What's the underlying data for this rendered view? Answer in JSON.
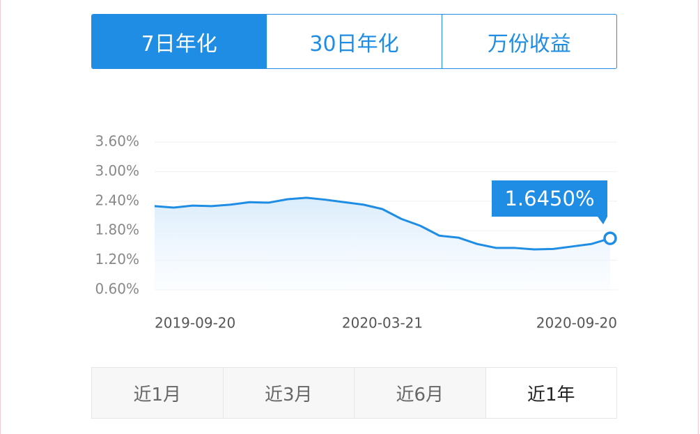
{
  "tabs": {
    "items": [
      "7日年化",
      "30日年化",
      "万份收益"
    ],
    "active": 0
  },
  "chart_data": {
    "type": "line",
    "categories": [
      "2019-09-20",
      null,
      null,
      null,
      null,
      null,
      null,
      null,
      null,
      null,
      null,
      null,
      "2020-03-21",
      null,
      null,
      null,
      null,
      null,
      null,
      null,
      null,
      null,
      null,
      null,
      "2020-09-20"
    ],
    "values": [
      2.3,
      2.27,
      2.31,
      2.3,
      2.33,
      2.38,
      2.37,
      2.44,
      2.47,
      2.43,
      2.38,
      2.33,
      2.24,
      2.04,
      1.9,
      1.7,
      1.66,
      1.53,
      1.45,
      1.45,
      1.42,
      1.43,
      1.48,
      1.53,
      1.645
    ],
    "color": "#1e8de3",
    "ylim": [
      0.6,
      3.6
    ],
    "yticks": [
      {
        "value": 0.6,
        "label": "0.60%"
      },
      {
        "value": 1.2,
        "label": "1.20%"
      },
      {
        "value": 1.8,
        "label": "1.80%"
      },
      {
        "value": 2.4,
        "label": "2.40%"
      },
      {
        "value": 3.0,
        "label": "3.00%"
      },
      {
        "value": 3.6,
        "label": "3.60%"
      }
    ],
    "grid": true,
    "annotation": "1.6450%"
  },
  "periods": {
    "items": [
      "近1月",
      "近3月",
      "近6月",
      "近1年"
    ],
    "active": 3
  }
}
